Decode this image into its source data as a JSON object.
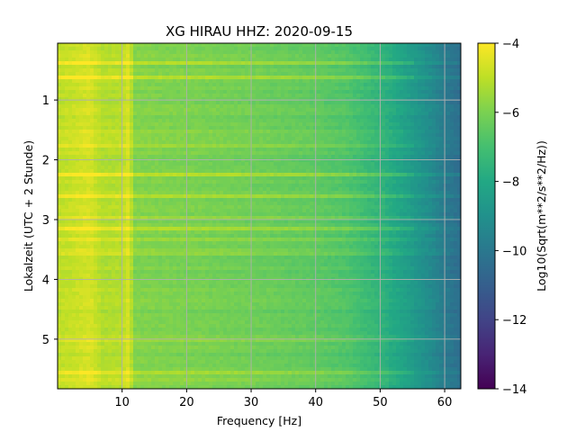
{
  "chart_data": {
    "type": "heatmap",
    "title": "XG HIRAU  HHZ: 2020-09-15",
    "xlabel": "Frequency [Hz]",
    "ylabel": "Lokalzeit (UTC + 2 Stunde)",
    "xlim": [
      0,
      62.5
    ],
    "ylim": [
      5.83,
      0.05
    ],
    "x_ticks": [
      10,
      20,
      30,
      40,
      50,
      60
    ],
    "x_tick_labels": [
      "10",
      "20",
      "30",
      "40",
      "50",
      "60"
    ],
    "y_ticks": [
      1,
      2,
      3,
      4,
      5
    ],
    "y_tick_labels": [
      "1",
      "2",
      "3",
      "4",
      "5"
    ],
    "grid": true,
    "colormap": "viridis",
    "colorbar": {
      "label": "Log10(Sqrt(m**2/s**2/Hz))",
      "range": [
        -14,
        -4
      ],
      "ticks": [
        -4,
        -6,
        -8,
        -10,
        -12,
        -14
      ],
      "tick_labels": [
        "−4",
        "−6",
        "−8",
        "−10",
        "−12",
        "−14"
      ]
    },
    "freq_profile": [
      {
        "hz": 0,
        "value": -5.0
      },
      {
        "hz": 2,
        "value": -4.9
      },
      {
        "hz": 5,
        "value": -4.6
      },
      {
        "hz": 7,
        "value": -5.2
      },
      {
        "hz": 10,
        "value": -5.1
      },
      {
        "hz": 11,
        "value": -4.6
      },
      {
        "hz": 12,
        "value": -5.9
      },
      {
        "hz": 20,
        "value": -6.0
      },
      {
        "hz": 30,
        "value": -6.2
      },
      {
        "hz": 40,
        "value": -6.5
      },
      {
        "hz": 45,
        "value": -6.8
      },
      {
        "hz": 50,
        "value": -7.5
      },
      {
        "hz": 55,
        "value": -8.6
      },
      {
        "hz": 58,
        "value": -9.3
      },
      {
        "hz": 60,
        "value": -9.9
      },
      {
        "hz": 62.5,
        "value": -10.4
      }
    ],
    "bright_bands_hours": [
      0.38,
      0.62,
      1.55,
      1.75,
      2.25,
      2.6,
      2.95,
      3.15,
      3.35,
      3.55,
      5.0,
      5.55,
      5.65
    ]
  }
}
